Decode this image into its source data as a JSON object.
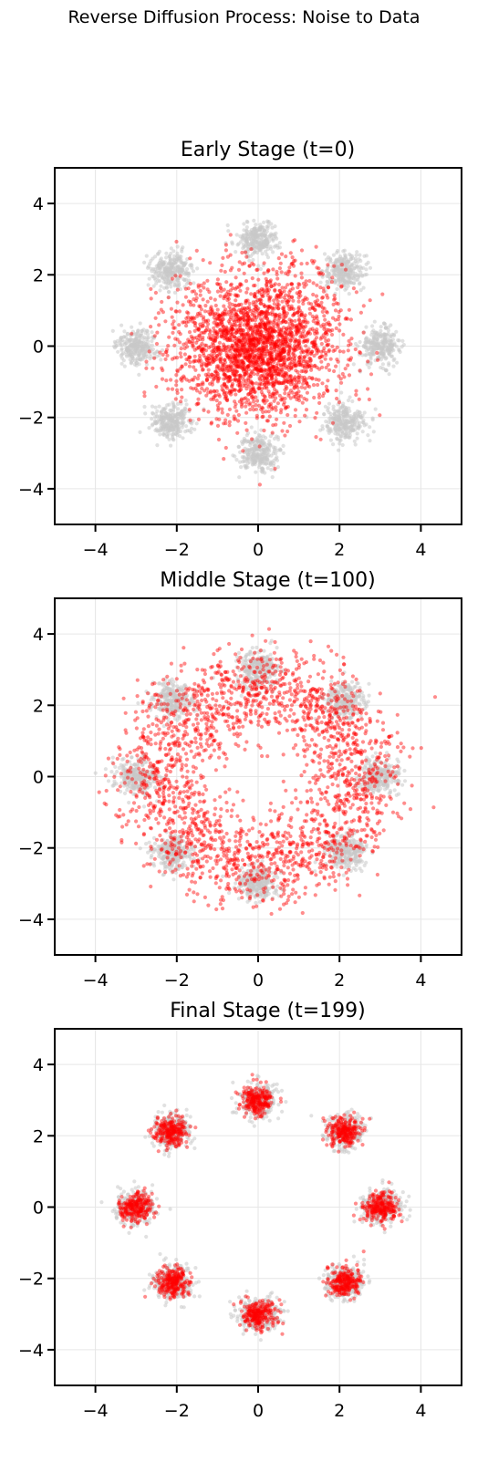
{
  "figure": {
    "suptitle": "Reverse Diffusion Process: Noise to Data"
  },
  "colors": {
    "target": "#c8c8c8",
    "samples": "#ff0000",
    "grid": "#e6e6e6",
    "axis": "#000000"
  },
  "chart_data": [
    {
      "type": "scatter",
      "title": "Early Stage (t=0)",
      "xlabel": "",
      "ylabel": "",
      "xlim": [
        -5,
        5
      ],
      "ylim": [
        -5,
        5
      ],
      "xticks": [
        -4,
        -2,
        0,
        2,
        4
      ],
      "yticks": [
        -4,
        -2,
        0,
        2,
        4
      ],
      "xtick_labels": [
        "−4",
        "−2",
        "0",
        "2",
        "4"
      ],
      "ytick_labels": [
        "4",
        "2",
        "0",
        "−2",
        "−4"
      ],
      "grid": true,
      "target_centers": [
        [
          3,
          0
        ],
        [
          2.12,
          2.12
        ],
        [
          0,
          3
        ],
        [
          -2.12,
          2.12
        ],
        [
          -3,
          0
        ],
        [
          -2.12,
          -2.12
        ],
        [
          0,
          -3
        ],
        [
          2.12,
          -2.12
        ]
      ],
      "target_std": 0.25,
      "samples": {
        "distribution": "gaussian",
        "center": [
          0,
          0
        ],
        "std": 1.0
      }
    },
    {
      "type": "scatter",
      "title": "Middle Stage (t=100)",
      "xlabel": "",
      "ylabel": "",
      "xlim": [
        -5,
        5
      ],
      "ylim": [
        -5,
        5
      ],
      "xticks": [
        -4,
        -2,
        0,
        2,
        4
      ],
      "yticks": [
        -4,
        -2,
        0,
        2,
        4
      ],
      "xtick_labels": [
        "−4",
        "−2",
        "0",
        "2",
        "4"
      ],
      "ytick_labels": [
        "4",
        "2",
        "0",
        "−2",
        "−4"
      ],
      "grid": true,
      "target_centers": [
        [
          3,
          0
        ],
        [
          2.12,
          2.12
        ],
        [
          0,
          3
        ],
        [
          -2.12,
          2.12
        ],
        [
          -3,
          0
        ],
        [
          -2.12,
          -2.12
        ],
        [
          0,
          -3
        ],
        [
          2.12,
          -2.12
        ]
      ],
      "target_std": 0.25,
      "samples": {
        "distribution": "ring",
        "radius": 2.5,
        "std": 0.6
      }
    },
    {
      "type": "scatter",
      "title": "Final Stage (t=199)",
      "xlabel": "",
      "ylabel": "",
      "xlim": [
        -5,
        5
      ],
      "ylim": [
        -5,
        5
      ],
      "xticks": [
        -4,
        -2,
        0,
        2,
        4
      ],
      "yticks": [
        -4,
        -2,
        0,
        2,
        4
      ],
      "xtick_labels": [
        "−4",
        "−2",
        "0",
        "2",
        "4"
      ],
      "ytick_labels": [
        "4",
        "2",
        "0",
        "−2",
        "−4"
      ],
      "grid": true,
      "target_centers": [
        [
          3,
          0
        ],
        [
          2.12,
          2.12
        ],
        [
          0,
          3
        ],
        [
          -2.12,
          2.12
        ],
        [
          -3,
          0
        ],
        [
          -2.12,
          -2.12
        ],
        [
          0,
          -3
        ],
        [
          2.12,
          -2.12
        ]
      ],
      "target_std": 0.25,
      "samples": {
        "distribution": "clusters",
        "std": 0.2
      }
    }
  ]
}
